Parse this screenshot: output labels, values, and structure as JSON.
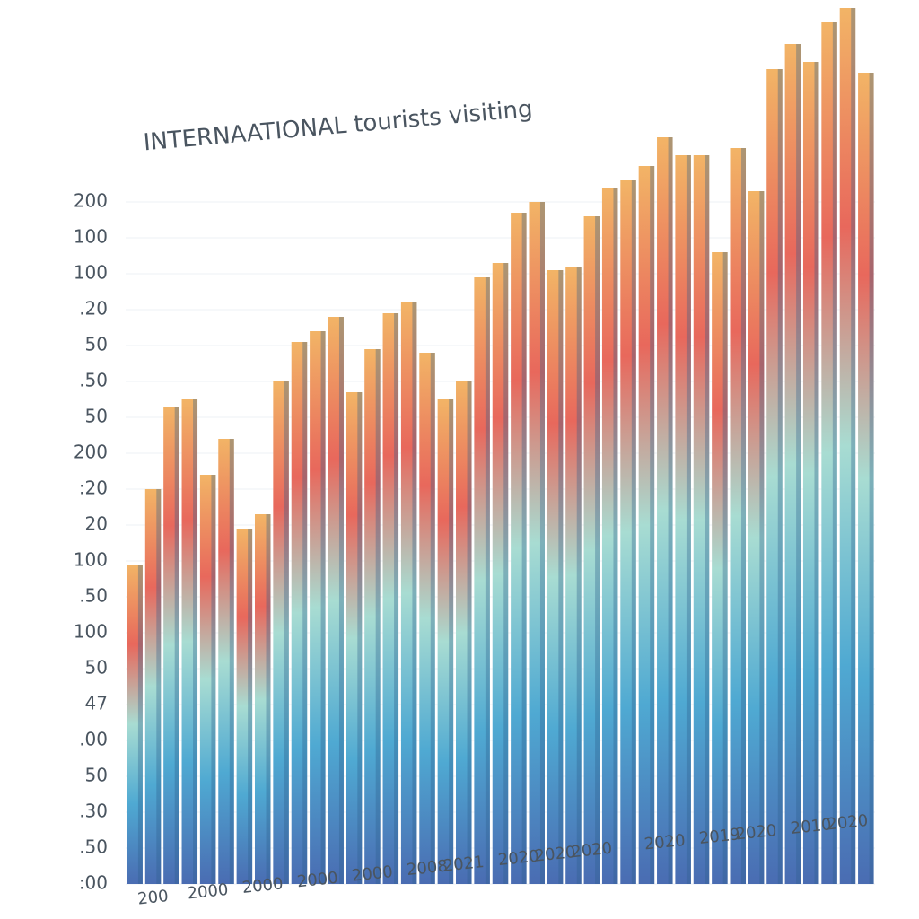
{
  "chart_data": {
    "type": "bar",
    "title": "INTERNAATIONAL tourists visiting",
    "categories": [
      null,
      "200",
      null,
      null,
      "2000",
      null,
      null,
      "2000",
      null,
      null,
      "2000",
      null,
      null,
      "2000",
      null,
      null,
      "2008",
      null,
      "2021",
      null,
      null,
      "2020",
      null,
      "2020",
      null,
      "2020",
      null,
      null,
      null,
      "2020",
      null,
      null,
      "2019",
      null,
      "2020",
      null,
      null,
      "2010",
      null,
      "2020",
      null
    ],
    "values": [
      8.9,
      11.0,
      13.3,
      13.5,
      11.4,
      12.4,
      9.9,
      10.3,
      14.0,
      15.1,
      15.4,
      15.8,
      13.7,
      14.9,
      15.9,
      16.2,
      14.8,
      13.5,
      14.0,
      16.9,
      17.3,
      18.7,
      19.0,
      17.1,
      17.2,
      18.6,
      19.4,
      19.6,
      20.0,
      20.8,
      20.3,
      20.3,
      17.6,
      20.5,
      19.3,
      22.7,
      23.4,
      22.9,
      24.0,
      24.4,
      22.6
    ],
    "gradient": [
      "#f2b466",
      "#e8685c",
      "#a8dcd2",
      "#4fa9d2",
      "#4a6cb2"
    ],
    "side_color": "#2f5f8c",
    "ylim": [
      0,
      24.5
    ],
    "yticks": [
      {
        "value": 0,
        "label": ":00"
      },
      {
        "value": 1,
        "label": ".50"
      },
      {
        "value": 2,
        "label": ".30"
      },
      {
        "value": 3,
        "label": "50"
      },
      {
        "value": 4,
        "label": ".00"
      },
      {
        "value": 5,
        "label": "47"
      },
      {
        "value": 6,
        "label": "50"
      },
      {
        "value": 7,
        "label": "100"
      },
      {
        "value": 8,
        "label": ".50"
      },
      {
        "value": 9,
        "label": "100"
      },
      {
        "value": 10,
        "label": "20"
      },
      {
        "value": 11,
        "label": ":20"
      },
      {
        "value": 12,
        "label": "200"
      },
      {
        "value": 13,
        "label": "50"
      },
      {
        "value": 14,
        "label": ".50"
      },
      {
        "value": 15,
        "label": "50"
      },
      {
        "value": 16,
        "label": ".20"
      },
      {
        "value": 17,
        "label": "100"
      },
      {
        "value": 18,
        "label": "100"
      },
      {
        "value": 19,
        "label": "200"
      }
    ],
    "grid": true
  }
}
